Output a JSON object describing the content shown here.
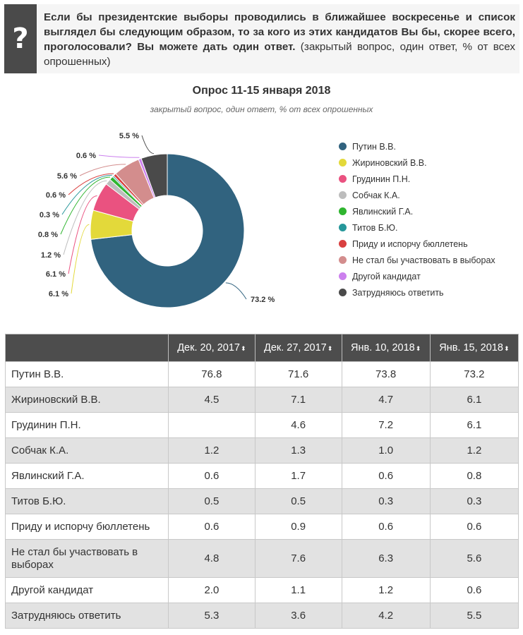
{
  "question": {
    "icon": "question-mark-icon",
    "icon_glyph": "?",
    "text_bold": "Если бы президентские выборы проводились в ближайшее воскресенье и список выглядел бы следующим образом, то за кого из этих кандидатов Вы бы, скорее всего, проголосовали? Вы можете дать один ответ.",
    "note": " (закрытый вопрос, один ответ, % от всех опрошенных)"
  },
  "chart_data": {
    "type": "pie",
    "variant": "donut",
    "title": "Опрос 11-15 января 2018",
    "subtitle": "закрытый вопрос, один ответ, % от всех опрошенных",
    "legend_position": "right",
    "slices": [
      {
        "label": "Путин В.В.",
        "value": 73.2,
        "display": "73.2 %",
        "color": "#31637f"
      },
      {
        "label": "Жириновский В.В.",
        "value": 6.1,
        "display": "6.1 %",
        "color": "#e3d93a"
      },
      {
        "label": "Грудинин П.Н.",
        "value": 6.1,
        "display": "6.1 %",
        "color": "#ea5280"
      },
      {
        "label": "Собчак К.А.",
        "value": 1.2,
        "display": "1.2 %",
        "color": "#bdbdbd"
      },
      {
        "label": "Явлинский Г.А.",
        "value": 0.8,
        "display": "0.8 %",
        "color": "#2fb52f"
      },
      {
        "label": "Титов Б.Ю.",
        "value": 0.3,
        "display": "0.3 %",
        "color": "#26979a"
      },
      {
        "label": "Приду и испорчу бюллетень",
        "value": 0.6,
        "display": "0.6 %",
        "color": "#d94040"
      },
      {
        "label": "Не стал бы участвовать в выборах",
        "value": 5.6,
        "display": "5.6 %",
        "color": "#d38d8d"
      },
      {
        "label": "Другой кандидат",
        "value": 0.6,
        "display": "0.6 %",
        "color": "#cc80ee"
      },
      {
        "label": "Затрудняюсь ответить",
        "value": 5.5,
        "display": "5.5 %",
        "color": "#4a4a4a"
      }
    ]
  },
  "table": {
    "corner": "",
    "columns": [
      "Дек. 20, 2017",
      "Дек. 27, 2017",
      "Янв. 10, 2018",
      "Янв. 15, 2018"
    ],
    "sort_icon": "⬍",
    "rows": [
      {
        "label": "Путин В.В.",
        "values": [
          "76.8",
          "71.6",
          "73.8",
          "73.2"
        ]
      },
      {
        "label": "Жириновский В.В.",
        "values": [
          "4.5",
          "7.1",
          "4.7",
          "6.1"
        ]
      },
      {
        "label": "Грудинин П.Н.",
        "values": [
          "",
          "4.6",
          "7.2",
          "6.1"
        ]
      },
      {
        "label": "Собчак К.А.",
        "values": [
          "1.2",
          "1.3",
          "1.0",
          "1.2"
        ]
      },
      {
        "label": "Явлинский Г.А.",
        "values": [
          "0.6",
          "1.7",
          "0.6",
          "0.8"
        ]
      },
      {
        "label": "Титов Б.Ю.",
        "values": [
          "0.5",
          "0.5",
          "0.3",
          "0.3"
        ]
      },
      {
        "label": "Приду и испорчу бюллетень",
        "values": [
          "0.6",
          "0.9",
          "0.6",
          "0.6"
        ]
      },
      {
        "label": "Не стал бы участвовать в выборах",
        "values": [
          "4.8",
          "7.6",
          "6.3",
          "5.6"
        ]
      },
      {
        "label": "Другой кандидат",
        "values": [
          "2.0",
          "1.1",
          "1.2",
          "0.6"
        ]
      },
      {
        "label": "Затрудняюсь ответить",
        "values": [
          "5.3",
          "3.6",
          "4.2",
          "5.5"
        ]
      }
    ]
  }
}
